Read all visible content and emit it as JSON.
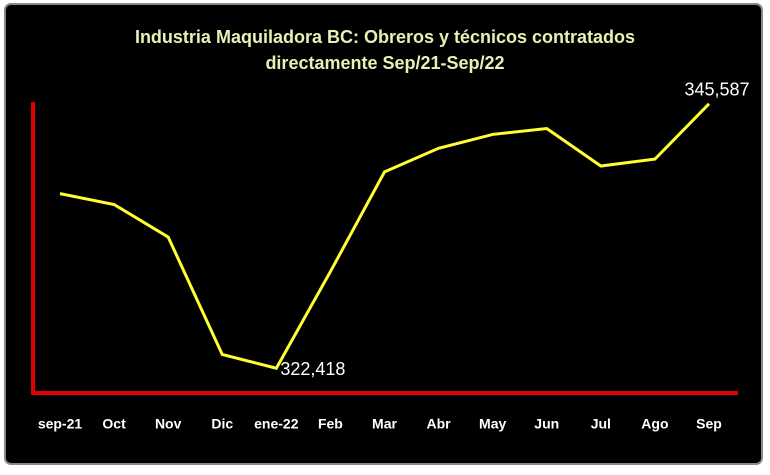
{
  "chart_data": {
    "type": "line",
    "title": [
      "Industria Maquiladora BC: Obreros y técnicos contratados",
      "directamente Sep/21-Sep/22"
    ],
    "categories": [
      "sep-21",
      "Oct",
      "Nov",
      "Dic",
      "ene-22",
      "Feb",
      "Mar",
      "Abr",
      "May",
      "Jun",
      "Jul",
      "Ago",
      "Sep"
    ],
    "values": [
      337720,
      336769,
      333916,
      323628,
      322418,
      330890,
      339622,
      341696,
      342907,
      343425,
      340140,
      340745,
      345587
    ],
    "value_labels": [
      null,
      null,
      null,
      null,
      "322,418",
      null,
      null,
      null,
      null,
      null,
      null,
      null,
      "345,587"
    ],
    "color": "#ffff33",
    "axis_color": "#e00000",
    "ylim": [
      320250,
      345750
    ]
  }
}
